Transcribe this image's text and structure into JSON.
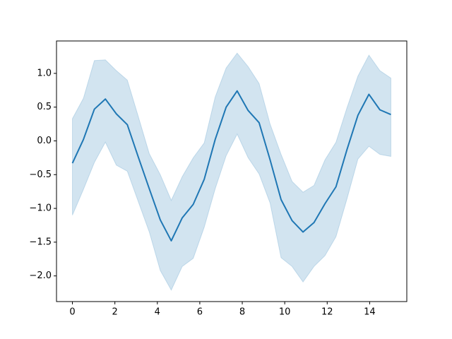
{
  "chart_data": {
    "type": "line",
    "x": [
      0,
      0.517,
      1.034,
      1.552,
      2.069,
      2.586,
      3.103,
      3.621,
      4.138,
      4.655,
      5.172,
      5.69,
      6.207,
      6.724,
      7.241,
      7.759,
      8.276,
      8.793,
      9.31,
      9.828,
      10.345,
      10.862,
      11.379,
      11.897,
      12.414,
      12.931,
      13.448,
      13.966,
      14.483,
      15
    ],
    "series": [
      {
        "color": "#1f77b4",
        "values": [
          -0.33,
          0.02,
          0.47,
          0.62,
          0.4,
          0.24,
          -0.24,
          -0.71,
          -1.17,
          -1.48,
          -1.14,
          -0.94,
          -0.57,
          0.02,
          0.5,
          0.74,
          0.45,
          0.27,
          -0.28,
          -0.87,
          -1.18,
          -1.35,
          -1.21,
          -0.93,
          -0.68,
          -0.13,
          0.38,
          0.69,
          0.46,
          0.39
        ],
        "upper": [
          0.33,
          0.63,
          1.19,
          1.2,
          1.04,
          0.9,
          0.36,
          -0.19,
          -0.5,
          -0.88,
          -0.53,
          -0.25,
          -0.03,
          0.65,
          1.08,
          1.3,
          1.1,
          0.85,
          0.25,
          -0.2,
          -0.6,
          -0.76,
          -0.66,
          -0.28,
          -0.02,
          0.49,
          0.96,
          1.27,
          1.04,
          0.93
        ],
        "lower": [
          -1.1,
          -0.72,
          -0.32,
          -0.02,
          -0.36,
          -0.45,
          -0.9,
          -1.35,
          -1.92,
          -2.21,
          -1.86,
          -1.74,
          -1.28,
          -0.71,
          -0.22,
          0.1,
          -0.25,
          -0.49,
          -0.92,
          -1.73,
          -1.86,
          -2.09,
          -1.86,
          -1.7,
          -1.42,
          -0.86,
          -0.27,
          -0.08,
          -0.2,
          -0.23
        ]
      }
    ],
    "xlim": [
      -0.75,
      15.75
    ],
    "ylim": [
      -2.38,
      1.48
    ],
    "xticks": [
      0,
      2,
      4,
      6,
      8,
      10,
      12,
      14
    ],
    "yticks": [
      {
        "value": -2,
        "label": "−2.0"
      },
      {
        "value": -1.5,
        "label": "−1.5"
      },
      {
        "value": -1,
        "label": "−1.0"
      },
      {
        "value": -0.5,
        "label": "−0.5"
      },
      {
        "value": 0,
        "label": "0.0"
      },
      0.5,
      {
        "value": 1,
        "label": "1.0"
      }
    ],
    "grid": false
  }
}
